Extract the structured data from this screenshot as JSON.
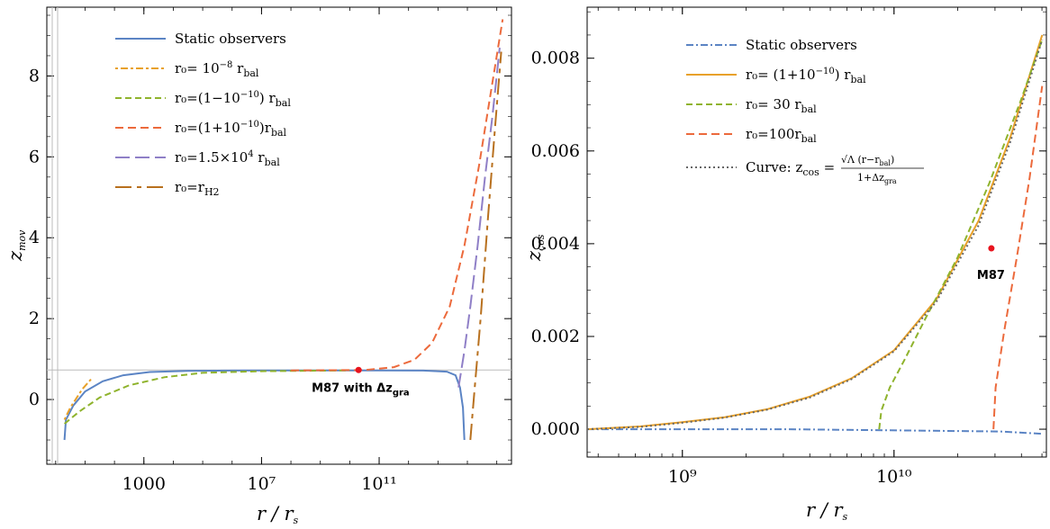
{
  "chart_data": [
    {
      "type": "line",
      "xlabel": "r / r_s",
      "ylabel": "z_mov",
      "x_scale": "log",
      "xlim_log10": [
        -0.3,
        15.5
      ],
      "ylim": [
        -1.6,
        9.7
      ],
      "x_ticks": [
        {
          "exp": 3,
          "label": "1000"
        },
        {
          "exp": 7,
          "label": "10⁷"
        },
        {
          "exp": 11,
          "label": "10¹¹"
        }
      ],
      "y_ticks": [
        0,
        2,
        4,
        6,
        8
      ],
      "reference_line_y": 0.73,
      "legend_position": "top-left",
      "series": [
        {
          "name": "Static observers",
          "color": "#5b84c4",
          "dash": "",
          "points": [
            [
              0.3,
              -1.0
            ],
            [
              0.35,
              -0.5
            ],
            [
              0.6,
              -0.15
            ],
            [
              1.0,
              0.2
            ],
            [
              1.6,
              0.45
            ],
            [
              2.3,
              0.6
            ],
            [
              3.2,
              0.68
            ],
            [
              4.5,
              0.71
            ],
            [
              7,
              0.72
            ],
            [
              11,
              0.72
            ],
            [
              12.5,
              0.715
            ],
            [
              13.3,
              0.69
            ],
            [
              13.6,
              0.6
            ],
            [
              13.75,
              0.3
            ],
            [
              13.85,
              -0.2
            ],
            [
              13.9,
              -1.0
            ]
          ]
        },
        {
          "name": "r0= 10^-8 r_bal",
          "color": "#e8a12a",
          "dash": "3,3,8,3",
          "points": [
            [
              0.3,
              -0.5
            ],
            [
              0.5,
              -0.2
            ],
            [
              0.9,
              0.25
            ],
            [
              1.2,
              0.5
            ]
          ]
        },
        {
          "name": "r0=(1−10^-10) r_bal",
          "color": "#8fb32d",
          "dash": "7,4",
          "points": [
            [
              0.3,
              -0.6
            ],
            [
              0.8,
              -0.3
            ],
            [
              1.5,
              0.05
            ],
            [
              2.5,
              0.35
            ],
            [
              3.7,
              0.55
            ],
            [
              5,
              0.66
            ],
            [
              7,
              0.7
            ],
            [
              10,
              0.72
            ]
          ]
        },
        {
          "name": "r0=(1+10^-10)r_bal",
          "color": "#ec6a3c",
          "dash": "9,5",
          "points": [
            [
              8,
              0.72
            ],
            [
              10.5,
              0.73
            ],
            [
              11.5,
              0.8
            ],
            [
              12.2,
              0.98
            ],
            [
              12.8,
              1.4
            ],
            [
              13.4,
              2.3
            ],
            [
              13.9,
              3.8
            ],
            [
              14.4,
              5.8
            ],
            [
              14.8,
              7.6
            ],
            [
              15.2,
              9.4
            ]
          ]
        },
        {
          "name": "r0=1.5×10^4 r_bal",
          "color": "#8f7fc7",
          "dash": "16,6",
          "points": [
            [
              13.7,
              0.3
            ],
            [
              13.9,
              1.2
            ],
            [
              14.1,
              2.3
            ],
            [
              14.35,
              3.8
            ],
            [
              14.6,
              5.5
            ],
            [
              14.85,
              7.0
            ],
            [
              15.1,
              8.7
            ]
          ]
        },
        {
          "name": "r0=r_H2",
          "color": "#b8701e",
          "dash": "18,6,5,6",
          "points": [
            [
              14.1,
              -1.0
            ],
            [
              14.25,
              0.3
            ],
            [
              14.45,
              2.0
            ],
            [
              14.7,
              4.5
            ],
            [
              14.95,
              6.8
            ],
            [
              15.15,
              8.6
            ]
          ]
        }
      ],
      "annotations": [
        {
          "x_exp": 10.3,
          "y": 0.73,
          "text": "M87 with Δz",
          "sub": "gra"
        }
      ]
    },
    {
      "type": "line",
      "xlabel": "r / r_s",
      "ylabel": "z_cos",
      "x_scale": "log",
      "xlim_log10": [
        8.55,
        10.72
      ],
      "ylim": [
        -0.0006,
        0.0091
      ],
      "x_ticks": [
        {
          "exp": 9,
          "label": "10⁹"
        },
        {
          "exp": 10,
          "label": "10¹⁰"
        }
      ],
      "y_ticks": [
        {
          "v": 0,
          "label": "0.000"
        },
        {
          "v": 0.002,
          "label": "0.002"
        },
        {
          "v": 0.004,
          "label": "0.004"
        },
        {
          "v": 0.006,
          "label": "0.006"
        },
        {
          "v": 0.008,
          "label": "0.008"
        }
      ],
      "legend_position": "top-left",
      "series": [
        {
          "name": "Static observers",
          "color": "#5b84c4",
          "dash": "8,3,2,3",
          "points": [
            [
              8.55,
              0.0
            ],
            [
              9.5,
              0.0
            ],
            [
              10.5,
              -5e-05
            ],
            [
              10.7,
              -0.0001
            ]
          ]
        },
        {
          "name": "r0= (1+10^-10) r_bal",
          "color": "#e8a12a",
          "dash": "",
          "points": [
            [
              8.55,
              0.0
            ],
            [
              8.8,
              6e-05
            ],
            [
              9.0,
              0.00015
            ],
            [
              9.2,
              0.00026
            ],
            [
              9.4,
              0.00043
            ],
            [
              9.6,
              0.0007
            ],
            [
              9.8,
              0.0011
            ],
            [
              10.0,
              0.0017
            ],
            [
              10.2,
              0.0028
            ],
            [
              10.4,
              0.0045
            ],
            [
              10.55,
              0.0063
            ],
            [
              10.7,
              0.0085
            ]
          ]
        },
        {
          "name": "r0= 30 r_bal",
          "color": "#8fb32d",
          "dash": "7,4",
          "points": [
            [
              9.93,
              0.0
            ],
            [
              9.94,
              0.0004
            ],
            [
              9.98,
              0.0009
            ],
            [
              10.05,
              0.0015
            ],
            [
              10.15,
              0.0024
            ],
            [
              10.3,
              0.0037
            ],
            [
              10.45,
              0.0053
            ],
            [
              10.6,
              0.0071
            ],
            [
              10.7,
              0.0084
            ]
          ]
        },
        {
          "name": "r0=100r_bal",
          "color": "#ec6a3c",
          "dash": "9,5",
          "points": [
            [
              10.47,
              0.0
            ],
            [
              10.48,
              0.0009
            ],
            [
              10.52,
              0.0021
            ],
            [
              10.58,
              0.0037
            ],
            [
              10.64,
              0.0054
            ],
            [
              10.7,
              0.0074
            ]
          ]
        },
        {
          "name": "Curve: z_cos",
          "color": "#666666",
          "dash": "2,3",
          "points": [
            [
              8.55,
              0.0
            ],
            [
              8.8,
              5e-05
            ],
            [
              9.0,
              0.00014
            ],
            [
              9.2,
              0.00025
            ],
            [
              9.4,
              0.00042
            ],
            [
              9.6,
              0.00068
            ],
            [
              9.8,
              0.00108
            ],
            [
              10.0,
              0.00168
            ],
            [
              10.2,
              0.00275
            ],
            [
              10.4,
              0.0044
            ],
            [
              10.55,
              0.0062
            ],
            [
              10.7,
              0.0084
            ]
          ]
        }
      ],
      "annotations": [
        {
          "x_exp": 10.46,
          "y": 0.0039,
          "text": "M87"
        }
      ]
    }
  ],
  "legend_left": {
    "items": [
      {
        "main": "Static observers"
      },
      {
        "main": "r₀= 10",
        "sup": "−8",
        "tail": " r",
        "sub": "bal"
      },
      {
        "main": "r₀=(1−10",
        "sup": "−10",
        "tail": ") r",
        "sub": "bal"
      },
      {
        "main": "r₀=(1+10",
        "sup": "−10",
        "tail": ")r",
        "sub": "bal"
      },
      {
        "main": "r₀=1.5×10",
        "sup": "4",
        "tail": " r",
        "sub": "bal"
      },
      {
        "main": "r₀=r",
        "sup": "",
        "tail": "",
        "sub": "H2"
      }
    ]
  },
  "legend_right": {
    "items": [
      {
        "main": "Static observers"
      },
      {
        "main": "r₀= (1+10",
        "sup": "−10",
        "tail": ") r",
        "sub": "bal"
      },
      {
        "main": "r₀= 30 r",
        "sup": "",
        "tail": "",
        "sub": "bal"
      },
      {
        "main": "r₀=100r",
        "sup": "",
        "tail": "",
        "sub": "bal"
      }
    ],
    "formula_prefix": "Curve: z",
    "formula_prefix_sub": "cos",
    "formula_eq": " = ",
    "formula_num": "√Λ (r−r",
    "formula_num_sub": "bal",
    "formula_num_tail": ")",
    "formula_den": "1+Δz",
    "formula_den_sub": "gra"
  },
  "axis_labels": {
    "left_x": "r / r",
    "left_x_sub": "s",
    "left_y": "z",
    "left_y_sub": "mov",
    "right_x": "r / r",
    "right_x_sub": "s",
    "right_y": "z",
    "right_y_sub": "cos"
  }
}
